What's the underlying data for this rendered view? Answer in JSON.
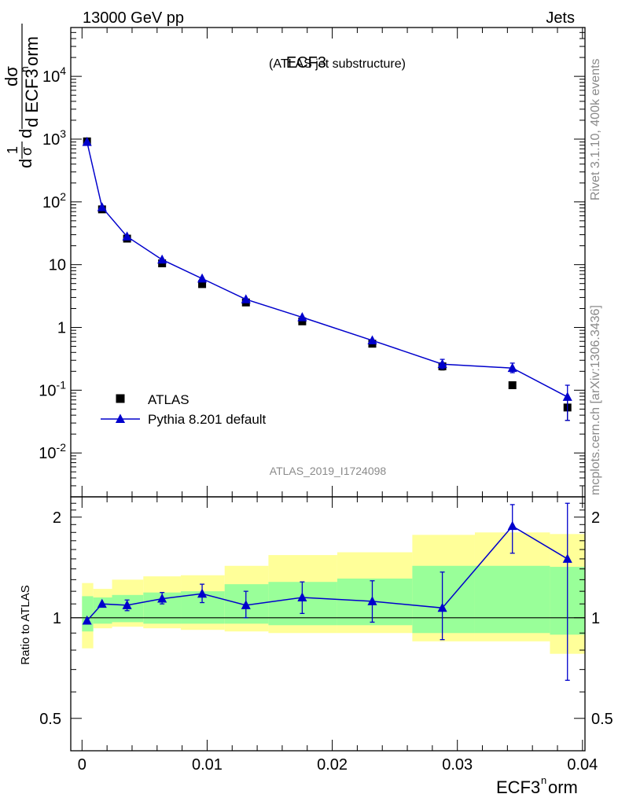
{
  "header": {
    "left": "13000 GeV pp",
    "right": "Jets"
  },
  "side_text": {
    "rivet": "Rivet 3.1.10,  400k events",
    "mcplots": "mcplots.cern.ch [arXiv:1306.3436]"
  },
  "chart_data": [
    {
      "type": "scatter",
      "title": "ECF3",
      "subtitle": "(ATLAS jet substructure)",
      "analysis_label": "ATLAS_2019_I1724098",
      "ylabel": "1/σ dσ/d ECF3norm",
      "ylog": true,
      "ylim": [
        0.002,
        60000
      ],
      "xlim": [
        -0.0009,
        0.0402
      ],
      "ytick_labels": [
        "10^-2",
        "10^-1",
        "1",
        "10",
        "10^2",
        "10^3",
        "10^4"
      ],
      "legend_placement": "lower-left",
      "series": [
        {
          "name": "ATLAS",
          "marker": "square",
          "color": "#000000",
          "x": [
            0.0004,
            0.0016,
            0.0036,
            0.0064,
            0.0096,
            0.0131,
            0.0176,
            0.0232,
            0.0288,
            0.0344,
            0.0388
          ],
          "y": [
            920,
            76,
            26,
            10.5,
            4.9,
            2.5,
            1.25,
            0.55,
            0.24,
            0.12,
            0.053
          ],
          "yerr": [
            null,
            null,
            null,
            null,
            null,
            null,
            null,
            null,
            [
              0.21,
              0.27
            ],
            null,
            [
              0.033,
              0.07
            ]
          ]
        },
        {
          "name": "Pythia 8.201 default",
          "marker": "triangle",
          "color": "#0000cc",
          "x": [
            0.0004,
            0.0016,
            0.0036,
            0.0064,
            0.0096,
            0.0131,
            0.0176,
            0.0232,
            0.0288,
            0.0344,
            0.0388
          ],
          "y": [
            900,
            82,
            28,
            12,
            6,
            2.8,
            1.45,
            0.62,
            0.26,
            0.225,
            0.078
          ],
          "yerr": [
            null,
            null,
            null,
            null,
            null,
            null,
            null,
            null,
            [
              0.22,
              0.31
            ],
            [
              0.19,
              0.27
            ],
            [
              0.033,
              0.12
            ]
          ]
        }
      ]
    },
    {
      "type": "scatter",
      "ylabel": "Ratio to ATLAS",
      "xlabel": "ECF3norm",
      "xlim": [
        -0.0009,
        0.0402
      ],
      "ylim": [
        0.4,
        2.3
      ],
      "ylog": true,
      "yticks": [
        0.5,
        1,
        2
      ],
      "ytick_labels": [
        "0.5",
        "1",
        "2"
      ],
      "xticks": [
        0,
        0.01,
        0.02,
        0.03,
        0.04
      ],
      "xtick_labels": [
        "0",
        "0.01",
        "0.02",
        "0.03",
        "0.04"
      ],
      "reference_line": 1,
      "bands": {
        "edges": [
          0,
          0.0009,
          0.0024,
          0.0049,
          0.0079,
          0.0114,
          0.0149,
          0.0204,
          0.0264,
          0.0314,
          0.0374,
          0.0402
        ],
        "yellow": [
          [
            0.81,
            1.27
          ],
          [
            0.93,
            1.22
          ],
          [
            0.94,
            1.3
          ],
          [
            0.93,
            1.33
          ],
          [
            0.92,
            1.34
          ],
          [
            0.91,
            1.43
          ],
          [
            0.9,
            1.54
          ],
          [
            0.9,
            1.57
          ],
          [
            0.85,
            1.77
          ],
          [
            0.85,
            1.8
          ],
          [
            0.78,
            1.78
          ]
        ],
        "green": [
          [
            0.91,
            1.16
          ],
          [
            0.96,
            1.15
          ],
          [
            0.97,
            1.17
          ],
          [
            0.96,
            1.19
          ],
          [
            0.96,
            1.2
          ],
          [
            0.96,
            1.26
          ],
          [
            0.95,
            1.28
          ],
          [
            0.95,
            1.31
          ],
          [
            0.9,
            1.43
          ],
          [
            0.9,
            1.43
          ],
          [
            0.89,
            1.42
          ]
        ],
        "colors": {
          "yellow": "#ffff99",
          "green": "#99ff99"
        }
      },
      "series": [
        {
          "name": "Pythia 8.201 default / ATLAS",
          "color": "#0000cc",
          "x": [
            0.0004,
            0.0016,
            0.0036,
            0.0064,
            0.0096,
            0.0131,
            0.0176,
            0.0232,
            0.0288,
            0.0344,
            0.0388
          ],
          "y": [
            0.98,
            1.1,
            1.09,
            1.14,
            1.18,
            1.09,
            1.15,
            1.12,
            1.07,
            1.88,
            1.5
          ],
          "yerr": [
            null,
            null,
            [
              1.05,
              1.13
            ],
            [
              1.1,
              1.19
            ],
            [
              1.11,
              1.26
            ],
            [
              1.0,
              1.2
            ],
            [
              1.03,
              1.28
            ],
            [
              0.97,
              1.29
            ],
            [
              0.86,
              1.37
            ],
            [
              1.56,
              2.18
            ],
            [
              0.65,
              2.2
            ]
          ]
        }
      ]
    }
  ]
}
